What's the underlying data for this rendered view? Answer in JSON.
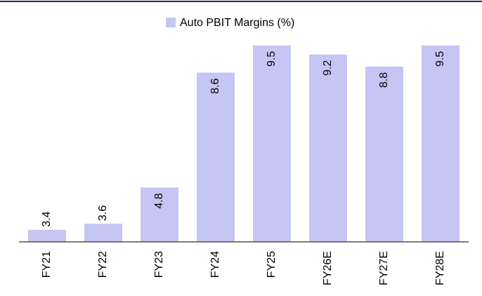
{
  "chart_data": {
    "type": "bar",
    "series": [
      {
        "name": "Auto PBIT Margins (%)",
        "color": "#c6c6f4",
        "values": [
          3.4,
          3.6,
          4.8,
          8.6,
          9.5,
          9.2,
          8.8,
          9.5
        ]
      }
    ],
    "categories": [
      "FY21",
      "FY22",
      "FY23",
      "FY24",
      "FY25",
      "FY26E",
      "FY27E",
      "FY28E"
    ],
    "ylim": [
      3,
      9.7
    ],
    "legend": "top"
  }
}
